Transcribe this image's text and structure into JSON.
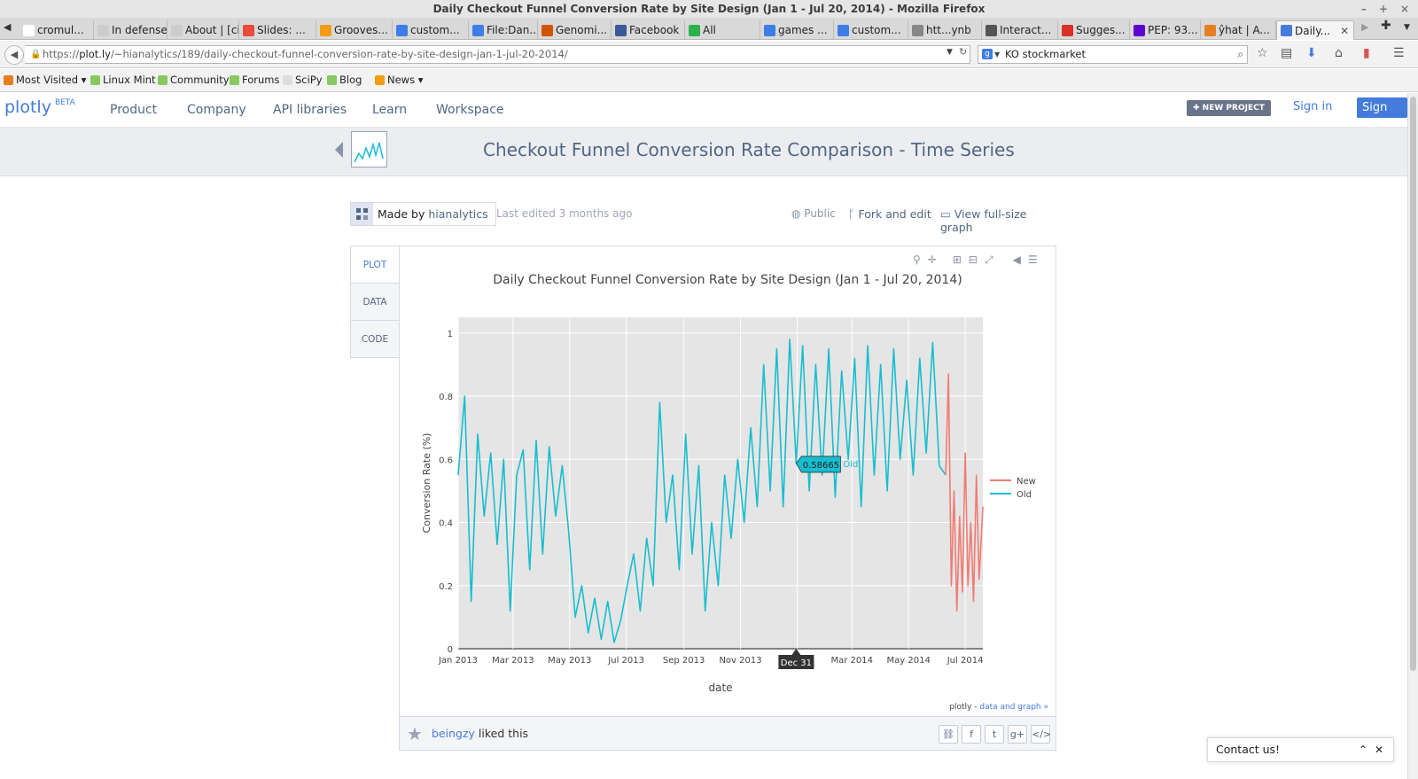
{
  "window": {
    "title": "Daily Checkout Funnel Conversion Rate by Site Design (Jan 1 - Jul 20, 2014) - Mozilla Firefox",
    "controls": [
      "–",
      "+",
      "×"
    ]
  },
  "tabs": [
    {
      "label": "cromul...",
      "icon": "wikipedia-icon",
      "color": "#ffffff"
    },
    {
      "label": "In defense ...",
      "icon": "page-icon",
      "color": "#cccccc"
    },
    {
      "label": "About | [cit...",
      "icon": "page-icon",
      "color": "#cccccc"
    },
    {
      "label": "Slides: ...",
      "icon": "slides-icon",
      "color": "#e74c3c"
    },
    {
      "label": "Grooves...",
      "icon": "grooveshark-icon",
      "color": "#f39c12"
    },
    {
      "label": "custom...",
      "icon": "google-icon",
      "color": "#3d7ee6"
    },
    {
      "label": "File:Dan...",
      "icon": "wiki-file-icon",
      "color": "#3d7ee6"
    },
    {
      "label": "Genomi...",
      "icon": "ex-icon",
      "color": "#d35400"
    },
    {
      "label": "Facebook",
      "icon": "facebook-icon",
      "color": "#3b5998"
    },
    {
      "label": "All",
      "icon": "feedly-icon",
      "color": "#2bb24c"
    },
    {
      "label": "games ...",
      "icon": "google-icon",
      "color": "#3d7ee6"
    },
    {
      "label": "custom...",
      "icon": "google-icon",
      "color": "#3d7ee6"
    },
    {
      "label": "htt...ynb",
      "icon": "file-icon",
      "color": "#888888"
    },
    {
      "label": "Interact...",
      "icon": "github-icon",
      "color": "#555555"
    },
    {
      "label": "Sugges...",
      "icon": "gmail-icon",
      "color": "#d93025"
    },
    {
      "label": "PEP: 93...",
      "icon": "yahoo-icon",
      "color": "#5f01d1"
    },
    {
      "label": "ŷhat | A...",
      "icon": "yhat-icon",
      "color": "#e67e22"
    },
    {
      "label": "Daily...",
      "icon": "chart-icon",
      "color": "#447bdc",
      "active": true
    }
  ],
  "nav": {
    "url_prefix": "https://",
    "url_host": "plot.ly",
    "url_path": "/~hianalytics/189/daily-checkout-funnel-conversion-rate-by-site-design-jan-1-jul-20-2014/",
    "search_value": "KO stockmarket"
  },
  "bookmarks": [
    {
      "label": "Most Visited ▾",
      "icon": "most-visited-icon",
      "color": "#e67e22"
    },
    {
      "label": "Linux Mint",
      "icon": "mint-icon",
      "color": "#87c95f"
    },
    {
      "label": "Community",
      "icon": "mint-icon",
      "color": "#87c95f"
    },
    {
      "label": "Forums",
      "icon": "mint-icon",
      "color": "#87c95f"
    },
    {
      "label": "SciPy",
      "icon": "page-icon",
      "color": "#dddddd"
    },
    {
      "label": "Blog",
      "icon": "mint-icon",
      "color": "#87c95f"
    },
    {
      "label": "News ▾",
      "icon": "rss-icon",
      "color": "#f39c12"
    }
  ],
  "site": {
    "logo": "plotly",
    "logo_badge": "BETA",
    "nav": [
      "Product",
      "Company",
      "API libraries",
      "Learn",
      "Workspace"
    ],
    "new_project": "✚ NEW PROJECT",
    "sign_in": "Sign in",
    "sign_up": "Sign up",
    "brand_color": "#447bdc"
  },
  "page": {
    "title": "Checkout Funnel Conversion Rate Comparison - Time Series",
    "made_by_label": "Made by",
    "made_by_user": "hianalytics",
    "last_edited": "Last edited 3 months ago",
    "visibility": "Public",
    "fork": "Fork and edit",
    "fullsize": "View full-size graph",
    "side_tabs": [
      "PLOT",
      "DATA",
      "CODE"
    ],
    "liked_user": "beingzy",
    "liked_text": "liked this",
    "contact": "Contact us!",
    "credit_prefix": "plotly - ",
    "credit_link": "data and graph »"
  },
  "chart_data": {
    "type": "line",
    "title": "Daily Checkout Funnel Conversion Rate by Site Design (Jan 1 - Jul 20, 2014)",
    "xlabel": "date",
    "ylabel": "Conversion Rate (%)",
    "xlim": [
      "2013-01-01",
      "2014-07-20"
    ],
    "ylim": [
      0,
      1.05
    ],
    "x_tick_labels": [
      "Jan 2013",
      "Mar 2013",
      "May 2013",
      "Jul 2013",
      "Sep 2013",
      "Nov 2013",
      "Jan 2014",
      "Mar 2014",
      "May 2014",
      "Jul 2014"
    ],
    "y_ticks": [
      0,
      0.2,
      0.4,
      0.6,
      0.8,
      1
    ],
    "grid": true,
    "legend_position": "right",
    "series": [
      {
        "name": "Old",
        "color": "#17becf",
        "points": [
          [
            "2013-01-01",
            0.55
          ],
          [
            "2013-01-08",
            0.8
          ],
          [
            "2013-01-15",
            0.15
          ],
          [
            "2013-01-22",
            0.68
          ],
          [
            "2013-01-29",
            0.42
          ],
          [
            "2013-02-05",
            0.62
          ],
          [
            "2013-02-12",
            0.33
          ],
          [
            "2013-02-19",
            0.6
          ],
          [
            "2013-02-26",
            0.12
          ],
          [
            "2013-03-05",
            0.55
          ],
          [
            "2013-03-12",
            0.63
          ],
          [
            "2013-03-19",
            0.25
          ],
          [
            "2013-03-26",
            0.66
          ],
          [
            "2013-04-02",
            0.3
          ],
          [
            "2013-04-09",
            0.64
          ],
          [
            "2013-04-16",
            0.42
          ],
          [
            "2013-04-23",
            0.58
          ],
          [
            "2013-04-30",
            0.37
          ],
          [
            "2013-05-07",
            0.1
          ],
          [
            "2013-05-14",
            0.2
          ],
          [
            "2013-05-21",
            0.05
          ],
          [
            "2013-05-28",
            0.16
          ],
          [
            "2013-06-04",
            0.03
          ],
          [
            "2013-06-11",
            0.15
          ],
          [
            "2013-06-18",
            0.02
          ],
          [
            "2013-06-25",
            0.09
          ],
          [
            "2013-07-02",
            0.2
          ],
          [
            "2013-07-09",
            0.3
          ],
          [
            "2013-07-16",
            0.12
          ],
          [
            "2013-07-23",
            0.35
          ],
          [
            "2013-07-30",
            0.2
          ],
          [
            "2013-08-06",
            0.78
          ],
          [
            "2013-08-13",
            0.4
          ],
          [
            "2013-08-20",
            0.55
          ],
          [
            "2013-08-27",
            0.25
          ],
          [
            "2013-09-03",
            0.68
          ],
          [
            "2013-09-10",
            0.3
          ],
          [
            "2013-09-17",
            0.58
          ],
          [
            "2013-09-24",
            0.12
          ],
          [
            "2013-10-01",
            0.4
          ],
          [
            "2013-10-08",
            0.2
          ],
          [
            "2013-10-15",
            0.55
          ],
          [
            "2013-10-22",
            0.35
          ],
          [
            "2013-10-29",
            0.6
          ],
          [
            "2013-11-05",
            0.4
          ],
          [
            "2013-11-12",
            0.7
          ],
          [
            "2013-11-19",
            0.45
          ],
          [
            "2013-11-26",
            0.9
          ],
          [
            "2013-12-03",
            0.5
          ],
          [
            "2013-12-10",
            0.95
          ],
          [
            "2013-12-17",
            0.45
          ],
          [
            "2013-12-24",
            0.98
          ],
          [
            "2013-12-31",
            0.587
          ],
          [
            "2014-01-07",
            0.96
          ],
          [
            "2014-01-14",
            0.5
          ],
          [
            "2014-01-21",
            0.9
          ],
          [
            "2014-01-28",
            0.55
          ],
          [
            "2014-02-04",
            0.95
          ],
          [
            "2014-02-11",
            0.48
          ],
          [
            "2014-02-18",
            0.88
          ],
          [
            "2014-02-25",
            0.6
          ],
          [
            "2014-03-04",
            0.92
          ],
          [
            "2014-03-11",
            0.45
          ],
          [
            "2014-03-18",
            0.96
          ],
          [
            "2014-03-25",
            0.55
          ],
          [
            "2014-04-01",
            0.9
          ],
          [
            "2014-04-08",
            0.5
          ],
          [
            "2014-04-15",
            0.95
          ],
          [
            "2014-04-22",
            0.6
          ],
          [
            "2014-04-29",
            0.85
          ],
          [
            "2014-05-06",
            0.55
          ],
          [
            "2014-05-13",
            0.92
          ],
          [
            "2014-05-20",
            0.62
          ],
          [
            "2014-05-27",
            0.97
          ],
          [
            "2014-06-03",
            0.58
          ],
          [
            "2014-06-10",
            0.55
          ]
        ]
      },
      {
        "name": "New",
        "color": "#ef7c73",
        "points": [
          [
            "2014-06-10",
            0.55
          ],
          [
            "2014-06-13",
            0.87
          ],
          [
            "2014-06-16",
            0.2
          ],
          [
            "2014-06-19",
            0.5
          ],
          [
            "2014-06-22",
            0.12
          ],
          [
            "2014-06-25",
            0.42
          ],
          [
            "2014-06-28",
            0.18
          ],
          [
            "2014-07-01",
            0.62
          ],
          [
            "2014-07-04",
            0.2
          ],
          [
            "2014-07-07",
            0.4
          ],
          [
            "2014-07-10",
            0.15
          ],
          [
            "2014-07-13",
            0.55
          ],
          [
            "2014-07-16",
            0.22
          ],
          [
            "2014-07-20",
            0.45
          ]
        ]
      }
    ],
    "hover_tooltip": {
      "value": "0.58665",
      "series": "Old",
      "x_label": "Dec 31"
    }
  }
}
